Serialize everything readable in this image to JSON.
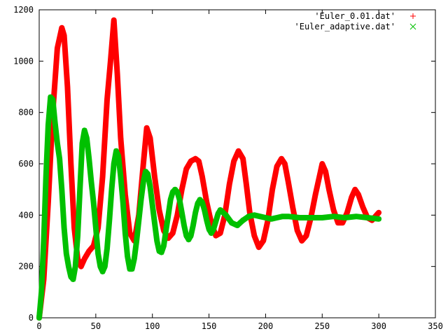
{
  "chart_data": {
    "type": "scatter",
    "title": "",
    "xlabel": "",
    "ylabel": "",
    "xlim": [
      0,
      350
    ],
    "ylim": [
      0,
      1200
    ],
    "x_ticks": [
      0,
      50,
      100,
      150,
      200,
      250,
      300,
      350
    ],
    "y_ticks": [
      0,
      200,
      400,
      600,
      800,
      1000,
      1200
    ],
    "x_tick_labels": [
      "0",
      "50",
      "100",
      "150",
      "200",
      "250",
      "300",
      "350"
    ],
    "y_tick_labels": [
      "0",
      "200",
      "400",
      "600",
      "800",
      "1000",
      "1200"
    ],
    "grid": false,
    "legend_position": "top-right",
    "series": [
      {
        "name": "'Euler_0.01.dat'",
        "marker": "plus",
        "color": "#ff0000",
        "x": [
          0,
          4,
          8,
          12,
          16,
          20,
          22,
          25,
          28,
          31,
          34,
          37,
          40,
          44,
          48,
          52,
          56,
          60,
          63,
          66,
          69,
          72,
          76,
          80,
          84,
          88,
          92,
          95,
          98,
          102,
          106,
          110,
          114,
          118,
          122,
          126,
          130,
          134,
          138,
          141,
          144,
          148,
          152,
          156,
          160,
          164,
          168,
          172,
          176,
          180,
          183,
          186,
          190,
          194,
          198,
          202,
          206,
          210,
          214,
          217,
          220,
          224,
          228,
          232,
          236,
          240,
          244,
          248,
          250,
          253,
          256,
          260,
          264,
          268,
          272,
          276,
          279,
          282,
          286,
          290,
          294,
          298,
          300
        ],
        "y": [
          0,
          150,
          450,
          800,
          1050,
          1130,
          1100,
          900,
          600,
          350,
          230,
          200,
          230,
          260,
          280,
          350,
          550,
          850,
          1000,
          1160,
          950,
          700,
          480,
          330,
          300,
          400,
          600,
          740,
          700,
          550,
          420,
          340,
          310,
          330,
          400,
          500,
          580,
          610,
          620,
          610,
          550,
          450,
          370,
          320,
          330,
          400,
          520,
          610,
          650,
          620,
          520,
          410,
          320,
          275,
          300,
          380,
          500,
          590,
          620,
          600,
          530,
          430,
          340,
          300,
          320,
          390,
          480,
          560,
          600,
          570,
          500,
          420,
          370,
          370,
          410,
          470,
          500,
          480,
          430,
          390,
          380,
          400,
          410
        ]
      },
      {
        "name": "'Euler_adaptive.dat'",
        "marker": "cross",
        "color": "#00c000",
        "x": [
          0,
          2,
          4,
          6,
          8,
          10,
          12,
          14,
          16,
          18,
          20,
          22,
          24,
          26,
          28,
          30,
          32,
          34,
          36,
          38,
          40,
          42,
          44,
          46,
          48,
          50,
          52,
          54,
          56,
          58,
          60,
          62,
          64,
          66,
          68,
          70,
          72,
          74,
          76,
          78,
          80,
          82,
          84,
          86,
          88,
          90,
          92,
          94,
          96,
          98,
          100,
          102,
          104,
          106,
          108,
          110,
          112,
          114,
          116,
          118,
          120,
          122,
          124,
          126,
          128,
          130,
          132,
          134,
          136,
          138,
          140,
          142,
          144,
          146,
          148,
          150,
          152,
          154,
          156,
          158,
          160,
          165,
          170,
          175,
          180,
          185,
          190,
          195,
          200,
          205,
          210,
          215,
          220,
          230,
          240,
          250,
          260,
          270,
          280,
          290,
          300
        ],
        "y": [
          0,
          100,
          300,
          550,
          750,
          860,
          850,
          760,
          680,
          620,
          500,
          350,
          250,
          200,
          160,
          150,
          200,
          320,
          500,
          680,
          730,
          700,
          620,
          530,
          450,
          350,
          250,
          200,
          180,
          200,
          270,
          380,
          500,
          600,
          650,
          630,
          550,
          450,
          330,
          240,
          190,
          190,
          230,
          300,
          380,
          460,
          530,
          570,
          560,
          510,
          440,
          370,
          300,
          260,
          255,
          280,
          340,
          400,
          460,
          490,
          500,
          490,
          460,
          410,
          360,
          320,
          305,
          320,
          360,
          410,
          445,
          460,
          450,
          420,
          380,
          345,
          330,
          345,
          375,
          405,
          420,
          400,
          370,
          360,
          380,
          395,
          400,
          395,
          390,
          385,
          390,
          395,
          395,
          390,
          390,
          390,
          395,
          390,
          395,
          390,
          385
        ]
      }
    ]
  }
}
